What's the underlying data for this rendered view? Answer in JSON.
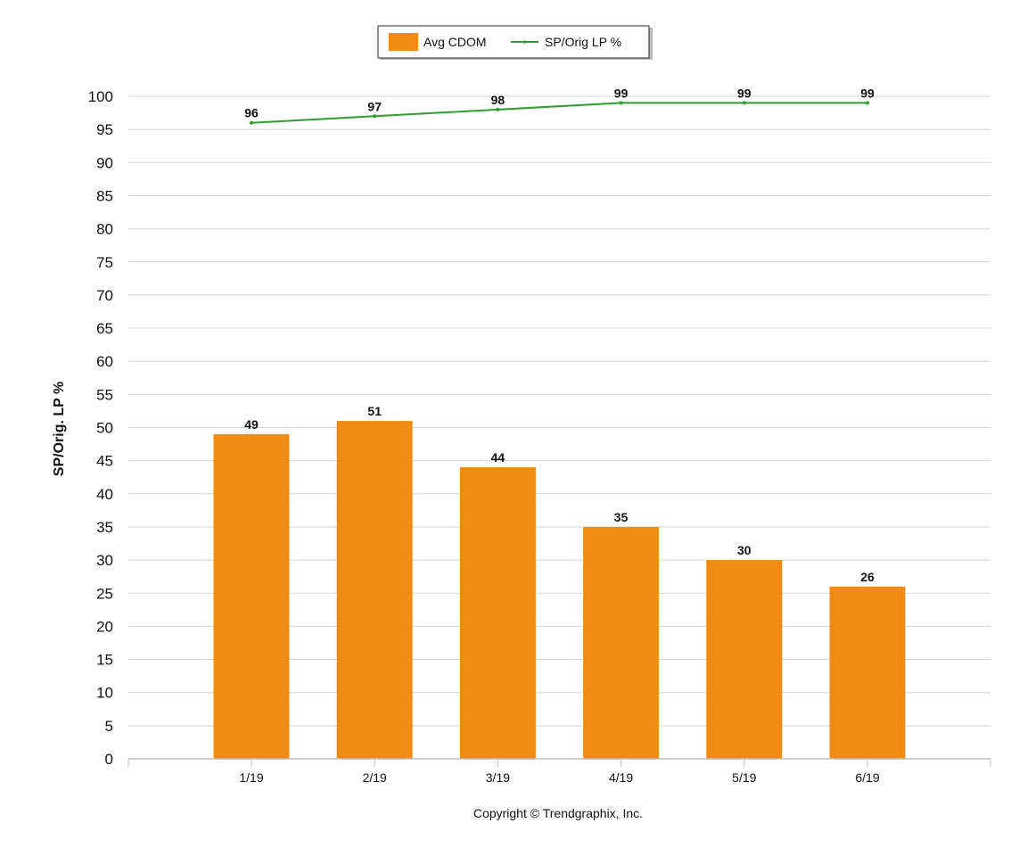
{
  "chart_data": {
    "type": "bar",
    "categories": [
      "1/19",
      "2/19",
      "3/19",
      "4/19",
      "5/19",
      "6/19"
    ],
    "series": [
      {
        "name": "Avg CDOM",
        "type": "bar",
        "color": "#f08c14",
        "values": [
          49,
          51,
          44,
          35,
          30,
          26
        ]
      },
      {
        "name": "SP/Orig LP %",
        "type": "line",
        "color": "#2ca02c",
        "values": [
          96,
          97,
          98,
          99,
          99,
          99
        ]
      }
    ],
    "ylabel": "SP/Orig. LP %",
    "ylim": [
      0,
      100
    ],
    "yticks": [
      0,
      5,
      10,
      15,
      20,
      25,
      30,
      35,
      40,
      45,
      50,
      55,
      60,
      65,
      70,
      75,
      80,
      85,
      90,
      95,
      100
    ],
    "grid": true,
    "legend": "top-center",
    "data_labels": true
  },
  "footer": {
    "copyright": "Copyright © Trendgraphix, Inc."
  }
}
